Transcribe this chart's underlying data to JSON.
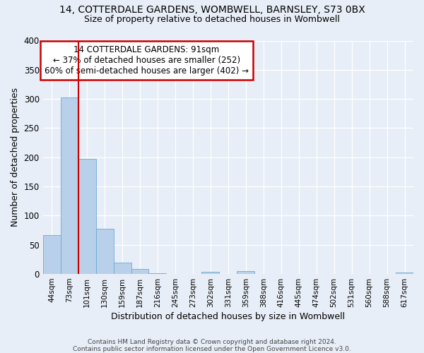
{
  "title": "14, COTTERDALE GARDENS, WOMBWELL, BARNSLEY, S73 0BX",
  "subtitle": "Size of property relative to detached houses in Wombwell",
  "xlabel": "Distribution of detached houses by size in Wombwell",
  "ylabel": "Number of detached properties",
  "bin_labels": [
    "44sqm",
    "73sqm",
    "101sqm",
    "130sqm",
    "159sqm",
    "187sqm",
    "216sqm",
    "245sqm",
    "273sqm",
    "302sqm",
    "331sqm",
    "359sqm",
    "388sqm",
    "416sqm",
    "445sqm",
    "474sqm",
    "502sqm",
    "531sqm",
    "560sqm",
    "588sqm",
    "617sqm"
  ],
  "bar_values": [
    67,
    303,
    197,
    77,
    19,
    9,
    1,
    0,
    0,
    4,
    0,
    5,
    0,
    0,
    0,
    0,
    0,
    0,
    0,
    0,
    2
  ],
  "bar_color": "#b8d0ea",
  "bar_edgecolor": "#6aaad4",
  "ylim": [
    0,
    400
  ],
  "yticks": [
    0,
    50,
    100,
    150,
    200,
    250,
    300,
    350,
    400
  ],
  "vline_x_index": 2,
  "vline_color": "#cc0000",
  "annotation_title": "14 COTTERDALE GARDENS: 91sqm",
  "annotation_line1": "← 37% of detached houses are smaller (252)",
  "annotation_line2": "60% of semi-detached houses are larger (402) →",
  "annotation_box_color": "#ffffff",
  "annotation_box_edgecolor": "#cc0000",
  "footer1": "Contains HM Land Registry data © Crown copyright and database right 2024.",
  "footer2": "Contains public sector information licensed under the Open Government Licence v3.0.",
  "background_color": "#e8eef7",
  "grid_color": "#ffffff"
}
